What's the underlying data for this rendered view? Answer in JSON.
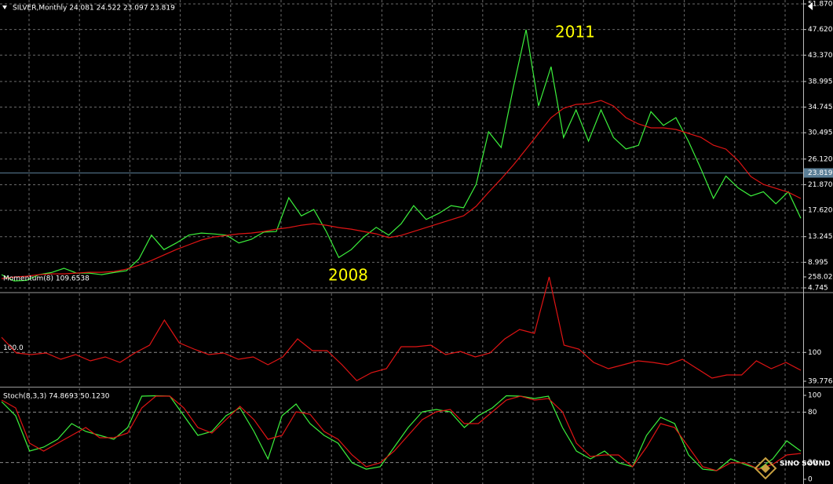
{
  "chart_data": [
    {
      "type": "line",
      "title": "SILVER,Monthly  24.081 24.522 23.097 23.819",
      "ylim": [
        4.745,
        51.87
      ],
      "yticks": [
        {
          "value": 51.87,
          "label": "51.870"
        },
        {
          "value": 47.62,
          "label": "47.620"
        },
        {
          "value": 43.37,
          "label": "43.370"
        },
        38.995,
        34.745,
        30.495,
        {
          "value": 26.12,
          "label": "26.120"
        },
        {
          "value": 21.87,
          "label": "21.870"
        },
        {
          "value": 17.62,
          "label": "17.620"
        },
        13.245,
        8.995,
        4.745
      ],
      "grid": true,
      "current_price": 23.819,
      "price_line_color": "#5a7e96",
      "annotations": [
        "2011",
        "2008"
      ],
      "annotation_color": "#ffff00",
      "series": [
        {
          "color": "#3cf03c",
          "values": [
            6.95,
            5.9,
            6.0,
            6.95,
            7.3,
            8.0,
            7.2,
            7.2,
            6.95,
            7.3,
            7.6,
            9.55,
            13.5,
            11.1,
            12.2,
            13.5,
            13.85,
            13.7,
            13.5,
            12.2,
            12.8,
            14.0,
            14.1,
            19.7,
            16.7,
            17.75,
            14.1,
            9.8,
            11.1,
            13.2,
            14.8,
            13.5,
            15.4,
            18.4,
            16.1,
            17.1,
            18.4,
            18.05,
            21.9,
            30.65,
            28.05,
            38.2,
            47.6,
            34.95,
            41.45,
            29.7,
            34.3,
            29.1,
            34.3,
            29.7,
            27.8,
            28.4,
            34.0,
            31.7,
            33.0,
            29.1,
            24.5,
            19.6,
            23.3,
            21.3,
            20.0,
            20.7,
            18.7,
            20.7,
            16.3
          ]
        },
        {
          "color": "#e01414",
          "values": [
            6.3,
            6.56,
            6.69,
            6.95,
            7.08,
            7.08,
            7.21,
            7.34,
            7.34,
            7.47,
            7.86,
            8.51,
            9.29,
            10.2,
            11.11,
            11.9,
            12.68,
            13.2,
            13.46,
            13.72,
            13.85,
            14.11,
            14.5,
            14.76,
            15.15,
            15.41,
            15.15,
            14.76,
            14.5,
            14.11,
            13.72,
            13.07,
            13.46,
            14.11,
            14.76,
            15.41,
            16.06,
            16.71,
            18.28,
            20.62,
            22.83,
            25.18,
            27.78,
            30.39,
            32.99,
            34.55,
            35.2,
            35.33,
            35.85,
            34.94,
            32.99,
            31.95,
            31.3,
            31.3,
            31.04,
            30.39,
            29.73,
            28.43,
            27.78,
            25.83,
            23.22,
            21.92,
            21.27,
            20.62,
            19.58
          ]
        }
      ]
    },
    {
      "type": "line",
      "title": "Momentum(8) 109.6538",
      "ylim": [
        39.7764,
        258.028
      ],
      "yticks": [
        258.028,
        100,
        39.7764
      ],
      "grid": false,
      "levels": [
        {
          "value": 100,
          "label": "100.0"
        }
      ],
      "series": [
        {
          "color": "#e01414",
          "values": [
            131.6,
            98.9,
            95.6,
            98.9,
            85.7,
            95.6,
            82.4,
            90.6,
            79.1,
            98.9,
            115.2,
            167.7,
            120.2,
            107.0,
            95.6,
            98.9,
            85.7,
            90.6,
            74.2,
            90.6,
            128.4,
            103.8,
            103.8,
            74.2,
            41.0,
            57.8,
            66.0,
            112.0,
            112.0,
            115.2,
            95.6,
            102.1,
            90.6,
            98.9,
            128.4,
            148.0,
            139.8,
            258.0,
            115.2,
            107.0,
            79.1,
            66.0,
            74.2,
            82.4,
            79.1,
            74.2,
            85.7,
            66.0,
            46.3,
            52.9,
            52.9,
            82.4,
            66.0,
            79.1,
            62.7
          ]
        }
      ]
    },
    {
      "type": "line",
      "title": "Stoch(8,3,3) 74.8693 50.1230",
      "ylim": [
        0,
        100
      ],
      "yticks": [
        100,
        80,
        20,
        0
      ],
      "grid": false,
      "levels": [
        80,
        20
      ],
      "series": [
        {
          "color": "#3cf03c",
          "values": [
            92.5,
            75.7,
            33.6,
            38.3,
            47.7,
            66.4,
            57.0,
            52.3,
            47.7,
            61.7,
            99.1,
            99.5,
            99.1,
            75.7,
            52.3,
            57.0,
            75.7,
            85.0,
            57.0,
            24.3,
            75.7,
            89.7,
            66.4,
            52.3,
            43.0,
            19.6,
            12.1,
            15.0,
            38.3,
            61.7,
            80.4,
            83.2,
            80.4,
            61.7,
            75.7,
            85.0,
            99.5,
            99.1,
            96.3,
            99.1,
            61.7,
            33.6,
            24.3,
            33.6,
            19.6,
            15.0,
            52.3,
            73.8,
            66.4,
            29.0,
            12.1,
            10.3,
            24.3,
            17.8,
            12.1,
            24.3,
            45.8,
            33.6
          ]
        },
        {
          "color": "#e01414",
          "values": [
            94.4,
            85.0,
            43.0,
            33.6,
            43.0,
            52.3,
            61.7,
            49.5,
            49.5,
            55.1,
            85.0,
            99.1,
            99.1,
            85.0,
            61.7,
            55.1,
            71.0,
            86.9,
            71.0,
            47.7,
            52.3,
            80.4,
            77.6,
            57.0,
            47.7,
            29.0,
            15.0,
            19.6,
            33.6,
            52.3,
            71.0,
            80.4,
            83.2,
            66.4,
            66.4,
            80.4,
            94.4,
            99.1,
            94.4,
            96.3,
            80.4,
            43.0,
            27.1,
            29.0,
            29.0,
            15.0,
            38.3,
            66.4,
            61.7,
            38.3,
            15.0,
            10.3,
            19.6,
            19.6,
            12.1,
            17.8,
            29.0,
            30.8
          ]
        }
      ]
    }
  ],
  "watermark": "SINO SOUND"
}
